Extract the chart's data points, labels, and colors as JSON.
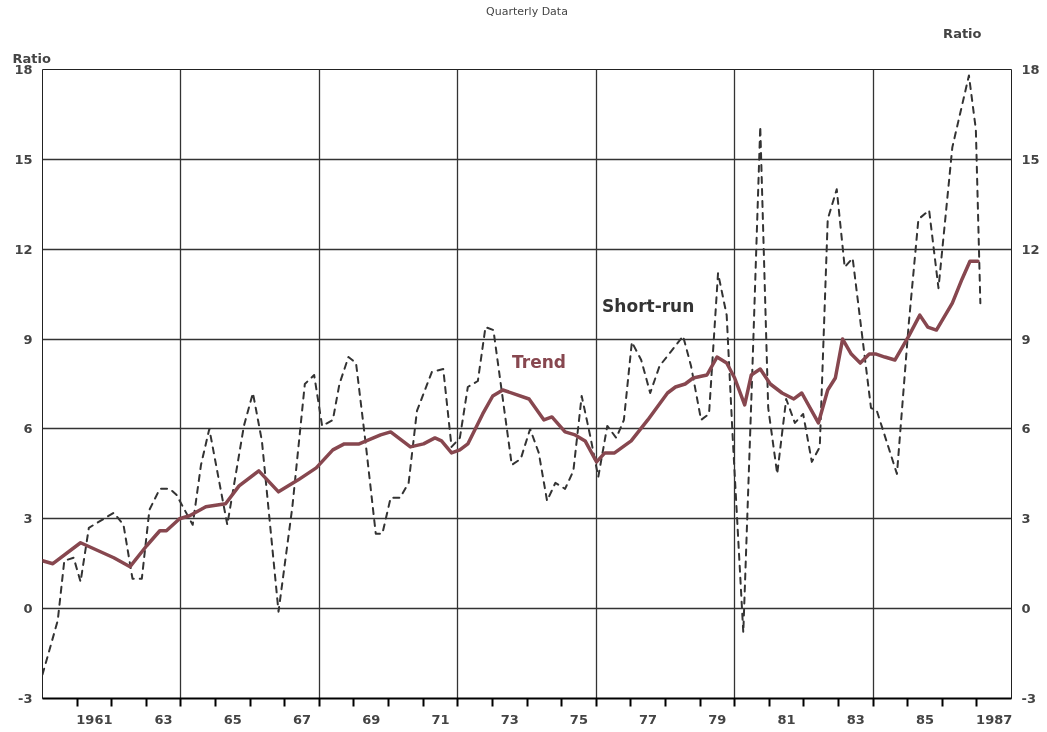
{
  "chart_data": {
    "type": "line",
    "title": "Quarterly Data",
    "ylabel": "Ratio",
    "y2label": "Ratio",
    "xlim": [
      1959.5,
      1987.5
    ],
    "ylim": [
      -3,
      18
    ],
    "y2lim": [
      -3,
      18
    ],
    "xticks": [
      {
        "value": 1960.5,
        "label": null
      },
      {
        "value": 1961.5,
        "label": null
      },
      {
        "value": 1962.5,
        "label": null
      },
      {
        "value": 1963.5,
        "label": null
      },
      {
        "value": 1964.5,
        "label": null
      },
      {
        "value": 1965.5,
        "label": null
      },
      {
        "value": 1966.5,
        "label": null
      },
      {
        "value": 1967.5,
        "label": null
      },
      {
        "value": 1968.5,
        "label": null
      },
      {
        "value": 1969.5,
        "label": null
      },
      {
        "value": 1970.5,
        "label": null
      },
      {
        "value": 1971.5,
        "label": null
      },
      {
        "value": 1972.5,
        "label": null
      },
      {
        "value": 1973.5,
        "label": null
      },
      {
        "value": 1974.5,
        "label": null
      },
      {
        "value": 1975.5,
        "label": null
      },
      {
        "value": 1976.5,
        "label": null
      },
      {
        "value": 1977.5,
        "label": null
      },
      {
        "value": 1978.5,
        "label": null
      },
      {
        "value": 1979.5,
        "label": null
      },
      {
        "value": 1980.5,
        "label": null
      },
      {
        "value": 1981.5,
        "label": null
      },
      {
        "value": 1982.5,
        "label": null
      },
      {
        "value": 1983.5,
        "label": null
      },
      {
        "value": 1984.5,
        "label": null
      },
      {
        "value": 1985.5,
        "label": null
      },
      {
        "value": 1986.5,
        "label": null
      },
      1961,
      {
        "value": 1963,
        "label": "63"
      },
      {
        "value": 1965,
        "label": "65"
      },
      {
        "value": 1967,
        "label": "67"
      },
      {
        "value": 1969,
        "label": "69"
      },
      {
        "value": 1971,
        "label": "71"
      },
      {
        "value": 1973,
        "label": "73"
      },
      {
        "value": 1975,
        "label": "75"
      },
      {
        "value": 1977,
        "label": "77"
      },
      {
        "value": 1979,
        "label": "79"
      },
      {
        "value": 1981,
        "label": "81"
      },
      {
        "value": 1983,
        "label": "83"
      },
      {
        "value": 1985,
        "label": "85"
      },
      1987
    ],
    "yticks": [
      -3,
      0,
      3,
      6,
      9,
      12,
      15,
      18
    ],
    "y2ticks": [
      -3,
      0,
      3,
      6,
      9,
      12,
      15,
      18
    ],
    "grid": true,
    "series": [
      {
        "name": "Short-run",
        "color": "#333333",
        "line_style": "dashed",
        "x": [
          1959.5,
          1959.94,
          1960.13,
          1960.4,
          1960.6,
          1960.84,
          1961.56,
          1961.84,
          1962.1,
          1962.37,
          1962.59,
          1962.89,
          1963.18,
          1963.37,
          1963.84,
          1964.08,
          1964.32,
          1964.84,
          1965.32,
          1965.58,
          1965.84,
          1966.32,
          1966.72,
          1967.08,
          1967.35,
          1967.58,
          1967.89,
          1968.08,
          1968.34,
          1968.56,
          1968.84,
          1969.13,
          1969.32,
          1969.56,
          1969.83,
          1970.08,
          1970.32,
          1970.75,
          1971.08,
          1971.32,
          1971.56,
          1971.79,
          1972.08,
          1972.3,
          1972.53,
          1973.06,
          1973.32,
          1973.59,
          1973.84,
          1974.08,
          1974.32,
          1974.6,
          1974.84,
          1975.08,
          1975.32,
          1975.56,
          1975.82,
          1976.08,
          1976.3,
          1976.53,
          1976.8,
          1977.06,
          1977.33,
          1978.01,
          1978.24,
          1978.53,
          1978.76,
          1979.02,
          1979.27,
          1979.44,
          1979.75,
          1980.01,
          1980.24,
          1980.47,
          1980.73,
          1980.99,
          1981.24,
          1981.48,
          1981.73,
          1981.96,
          1982.19,
          1982.45,
          1982.68,
          1982.91,
          1983.44,
          1983.61,
          1984.19,
          1984.53,
          1984.81,
          1985.12,
          1985.39,
          1985.79,
          1986.27,
          1986.47,
          1986.6
        ],
        "values": [
          -2.2,
          -0.4,
          1.6,
          1.7,
          0.9,
          2.7,
          3.2,
          2.8,
          1.0,
          1.0,
          3.3,
          4.0,
          4.0,
          3.8,
          2.8,
          4.8,
          6.0,
          2.8,
          6.1,
          7.2,
          5.6,
          -0.1,
          3.4,
          7.5,
          7.8,
          6.1,
          6.3,
          7.5,
          8.4,
          8.2,
          5.5,
          2.5,
          2.5,
          3.7,
          3.7,
          4.2,
          6.6,
          7.9,
          8.0,
          5.4,
          5.7,
          7.4,
          7.6,
          9.4,
          9.3,
          4.8,
          5.0,
          6.0,
          5.2,
          3.6,
          4.2,
          4.0,
          4.6,
          7.1,
          5.8,
          4.4,
          6.1,
          5.7,
          6.3,
          8.9,
          8.3,
          7.2,
          8.1,
          9.1,
          8.1,
          6.3,
          6.5,
          11.2,
          9.8,
          5.8,
          -0.8,
          7.9,
          16.1,
          6.7,
          4.5,
          7.0,
          6.2,
          6.5,
          4.9,
          5.4,
          13.0,
          14.0,
          11.4,
          11.7,
          6.7,
          6.6,
          4.5,
          9.5,
          13.0,
          13.3,
          10.7,
          15.4,
          17.8,
          16.0,
          10.2
        ]
      },
      {
        "name": "Trend",
        "color": "#87474f",
        "line_style": "solid",
        "x": [
          1959.5,
          1959.8,
          1960.6,
          1961.56,
          1962.03,
          1962.51,
          1962.89,
          1963.08,
          1963.46,
          1963.75,
          1964.22,
          1964.79,
          1965.18,
          1965.75,
          1966.32,
          1966.89,
          1967.41,
          1967.89,
          1968.22,
          1968.65,
          1969.27,
          1969.56,
          1970.13,
          1970.51,
          1970.84,
          1971.03,
          1971.32,
          1971.56,
          1971.79,
          1972.22,
          1972.51,
          1972.8,
          1973.56,
          1973.99,
          1974.22,
          1974.6,
          1974.89,
          1975.18,
          1975.51,
          1975.75,
          1976.03,
          1976.51,
          1976.99,
          1977.56,
          1977.79,
          1978.07,
          1978.3,
          1978.7,
          1978.99,
          1979.27,
          1979.5,
          1979.79,
          1979.98,
          1980.24,
          1980.53,
          1980.87,
          1981.21,
          1981.44,
          1981.92,
          1982.19,
          1982.41,
          1982.62,
          1982.87,
          1983.13,
          1983.39,
          1983.59,
          1983.84,
          1984.13,
          1984.53,
          1984.85,
          1985.08,
          1985.33,
          1985.79,
          1986.07,
          1986.3,
          1986.53
        ],
        "values": [
          1.6,
          1.5,
          2.2,
          1.7,
          1.4,
          2.1,
          2.6,
          2.6,
          3.0,
          3.1,
          3.4,
          3.5,
          4.1,
          4.6,
          3.9,
          4.3,
          4.7,
          5.3,
          5.5,
          5.5,
          5.8,
          5.9,
          5.4,
          5.5,
          5.7,
          5.6,
          5.2,
          5.3,
          5.5,
          6.5,
          7.1,
          7.3,
          7.0,
          6.3,
          6.4,
          5.9,
          5.8,
          5.6,
          4.9,
          5.2,
          5.2,
          5.6,
          6.3,
          7.2,
          7.4,
          7.5,
          7.7,
          7.8,
          8.4,
          8.2,
          7.7,
          6.8,
          7.8,
          8.0,
          7.5,
          7.2,
          7.0,
          7.2,
          6.2,
          7.3,
          7.7,
          9.0,
          8.5,
          8.2,
          8.5,
          8.5,
          8.4,
          8.3,
          9.1,
          9.8,
          9.4,
          9.3,
          10.2,
          11.0,
          11.6,
          11.6
        ]
      }
    ]
  }
}
